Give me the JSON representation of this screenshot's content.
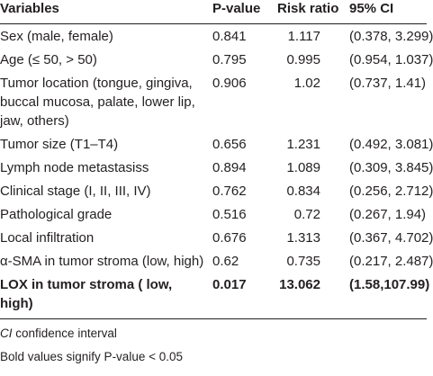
{
  "table": {
    "columns": [
      "Variables",
      "P-value",
      "Risk ratio",
      "95% CI"
    ],
    "rows": [
      {
        "cells": [
          "Sex (male, female)",
          "0.841",
          "1.117",
          "(0.378, 3.299)"
        ]
      },
      {
        "cells": [
          "Age (≤ 50, > 50)",
          "0.795",
          "0.995",
          "(0.954, 1.037)"
        ]
      },
      {
        "cells": [
          "Tumor location (tongue, gingiva, buccal mucosa, palate, lower lip, jaw, others)",
          "0.906",
          "1.02",
          "(0.737, 1.41)"
        ]
      },
      {
        "cells": [
          "Tumor size (T1–T4)",
          "0.656",
          "1.231",
          "(0.492, 3.081)"
        ]
      },
      {
        "cells": [
          "Lymph node metastasiss",
          "0.894",
          "1.089",
          "(0.309, 3.845)"
        ]
      },
      {
        "cells": [
          "Clinical stage (I, II, III, IV)",
          "0.762",
          "0.834",
          "(0.256, 2.712)"
        ]
      },
      {
        "cells": [
          "Pathological grade",
          "0.516",
          "0.72",
          "(0.267, 1.94)"
        ]
      },
      {
        "cells": [
          "Local infiltration",
          "0.676",
          "1.313",
          "(0.367, 4.702)"
        ]
      },
      {
        "cells": [
          "α-SMA in tumor stroma (low, high)",
          "0.62",
          "0.735",
          "(0.217, 2.487)"
        ]
      },
      {
        "cells": [
          "LOX in tumor stroma ( low, high)",
          "0.017",
          "13.062",
          "(1.58,107.99)"
        ],
        "bold": true
      }
    ]
  },
  "footnotes": [
    {
      "abbr": "CI",
      "text": "confidence interval"
    },
    {
      "text": "Bold values signify P-value < 0.05"
    }
  ]
}
